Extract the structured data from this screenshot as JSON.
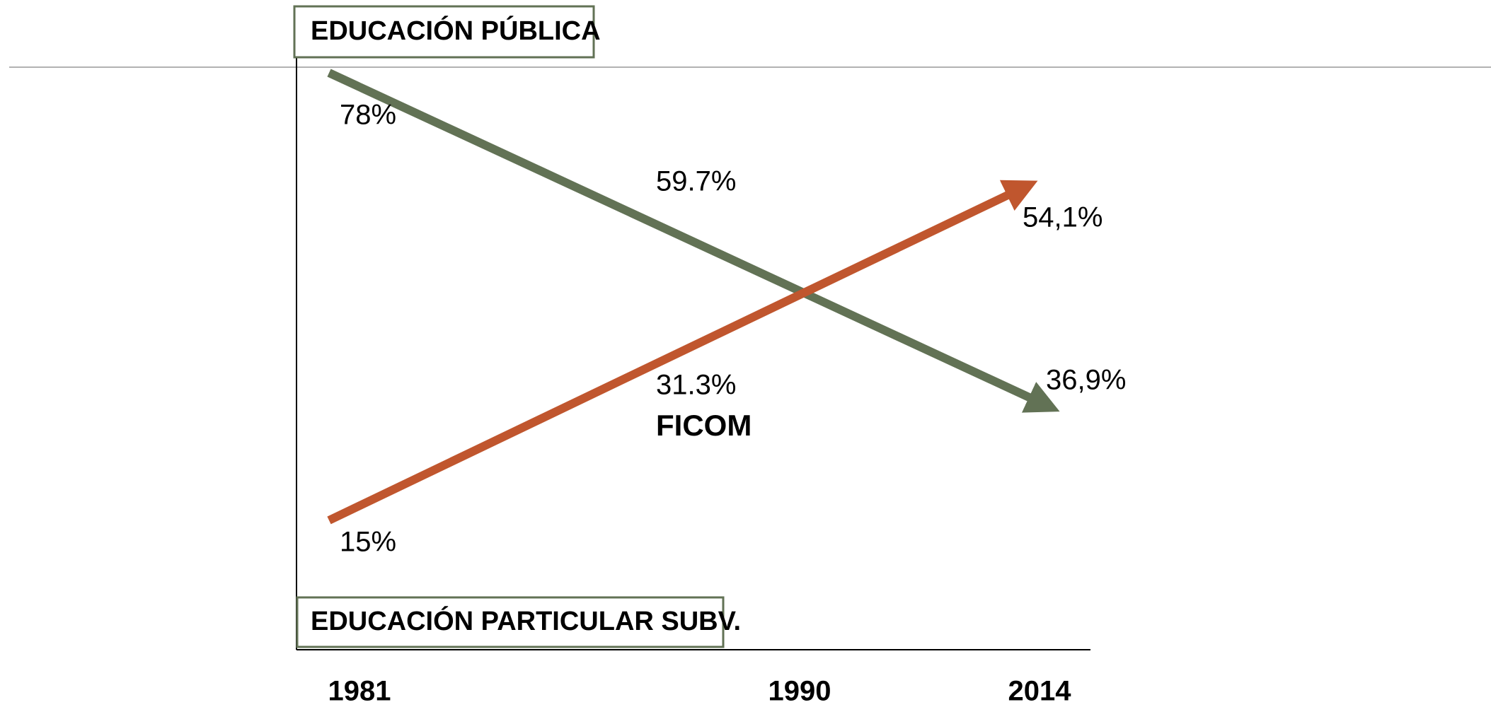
{
  "top_box": "EDUCACIÓN PÚBLICA",
  "bottom_box": "EDUCACIÓN PARTICULAR SUBV.",
  "publica": {
    "start": "78%",
    "middle": "59.7%",
    "end": "36,9%"
  },
  "particular": {
    "start": "15%",
    "middle": "31.3%",
    "name": "FICOM",
    "end": "54,1%"
  },
  "years": [
    "1981",
    "1990",
    "2014"
  ]
}
